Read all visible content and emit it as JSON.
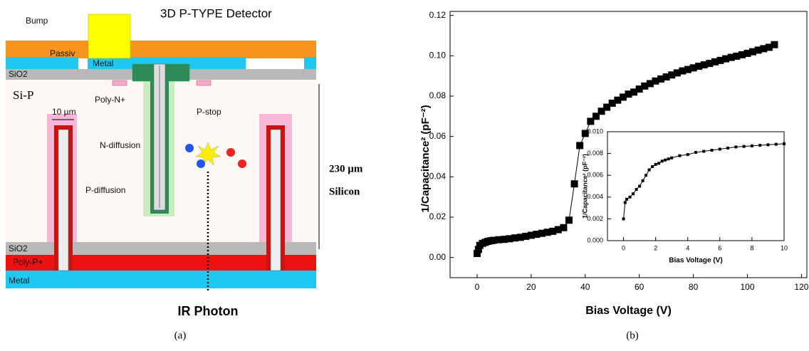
{
  "panel_a": {
    "title": "3D P-TYPE Detector",
    "bump": "Bump",
    "passiv": "Passiv",
    "metal_top": "Metal",
    "sio2_top": "SiO2",
    "si_p": "Si-P",
    "poly_n": "Poly-N+",
    "p_stop": "P-stop",
    "width": "10 µm",
    "n_diffusion": "N-diffusion",
    "p_diffusion": "P-diffusion",
    "thickness": "230 µm",
    "silicon": "Silicon",
    "sio2_bottom": "SiO2",
    "poly_p": "Poly-P+",
    "metal_bottom": "Metal",
    "photon": "IR Photon",
    "caption": "(a)"
  },
  "caption_b": "(b)",
  "chart_data": [
    {
      "type": "scatter",
      "x_label": "Bias Voltage (V)",
      "y_label": "1/Capacitance² (pF⁻²)",
      "color": "#000000",
      "xlim": [
        -10,
        122
      ],
      "xticks": [
        0,
        20,
        40,
        60,
        80,
        100,
        120
      ],
      "ylim": [
        -0.01,
        0.122
      ],
      "yticks": [
        {
          "value": 0,
          "label": "0.00"
        },
        0.02,
        0.04,
        0.06,
        0.08,
        {
          "value": 0.1,
          "label": "0.10"
        },
        0.12
      ],
      "x": [
        0,
        0.5,
        1,
        2,
        3,
        4,
        5,
        6,
        8,
        10,
        12,
        14,
        16,
        18,
        20,
        22,
        24,
        26,
        28,
        30,
        32,
        34,
        36,
        38,
        40,
        42,
        44,
        46,
        48,
        50,
        52,
        54,
        56,
        58,
        60,
        62,
        64,
        66,
        68,
        70,
        72,
        74,
        76,
        78,
        80,
        82,
        84,
        86,
        88,
        90,
        92,
        94,
        96,
        98,
        100,
        102,
        104,
        106,
        108,
        110
      ],
      "values": [
        0.002,
        0.004,
        0.006,
        0.007,
        0.0075,
        0.008,
        0.0083,
        0.0085,
        0.0088,
        0.009,
        0.0093,
        0.0097,
        0.01,
        0.0105,
        0.011,
        0.0115,
        0.012,
        0.0125,
        0.013,
        0.0138,
        0.0148,
        0.0185,
        0.0365,
        0.0555,
        0.0615,
        0.0675,
        0.07,
        0.0725,
        0.0745,
        0.0765,
        0.078,
        0.0795,
        0.081,
        0.082,
        0.0835,
        0.085,
        0.0862,
        0.0875,
        0.0885,
        0.0895,
        0.0905,
        0.0915,
        0.0925,
        0.0932,
        0.094,
        0.0948,
        0.0955,
        0.0962,
        0.097,
        0.0977,
        0.0985,
        0.0992,
        0.0998,
        0.1005,
        0.1012,
        0.102,
        0.1028,
        0.1035,
        0.1042,
        0.1055
      ]
    },
    {
      "type": "scatter",
      "x_label": "Bias Voltage (V)",
      "y_label": "1/Capacitance² (pF⁻²)",
      "color": "#000000",
      "xlim": [
        -1,
        10
      ],
      "xticks": [
        0,
        2,
        4,
        6,
        8,
        10
      ],
      "ylim": [
        0,
        0.01
      ],
      "yticks": [
        {
          "value": 0,
          "label": "0.000"
        },
        0.002,
        0.004,
        0.006,
        0.008,
        {
          "value": 0.01,
          "label": "0.010"
        }
      ],
      "x": [
        0,
        0.1,
        0.2,
        0.4,
        0.6,
        0.8,
        1,
        1.2,
        1.4,
        1.6,
        1.8,
        2,
        2.2,
        2.4,
        2.6,
        2.8,
        3,
        3.5,
        4,
        4.5,
        5,
        5.5,
        6,
        6.5,
        7,
        7.5,
        8,
        8.5,
        9,
        9.5,
        10
      ],
      "values": [
        0.002,
        0.0035,
        0.0038,
        0.004,
        0.0043,
        0.0047,
        0.005,
        0.0055,
        0.006,
        0.0065,
        0.0068,
        0.007,
        0.0071,
        0.0073,
        0.0074,
        0.0075,
        0.0076,
        0.0078,
        0.0079,
        0.0081,
        0.0082,
        0.0083,
        0.0084,
        0.0085,
        0.0086,
        0.00865,
        0.0087,
        0.00875,
        0.0088,
        0.00885,
        0.0089
      ]
    }
  ]
}
